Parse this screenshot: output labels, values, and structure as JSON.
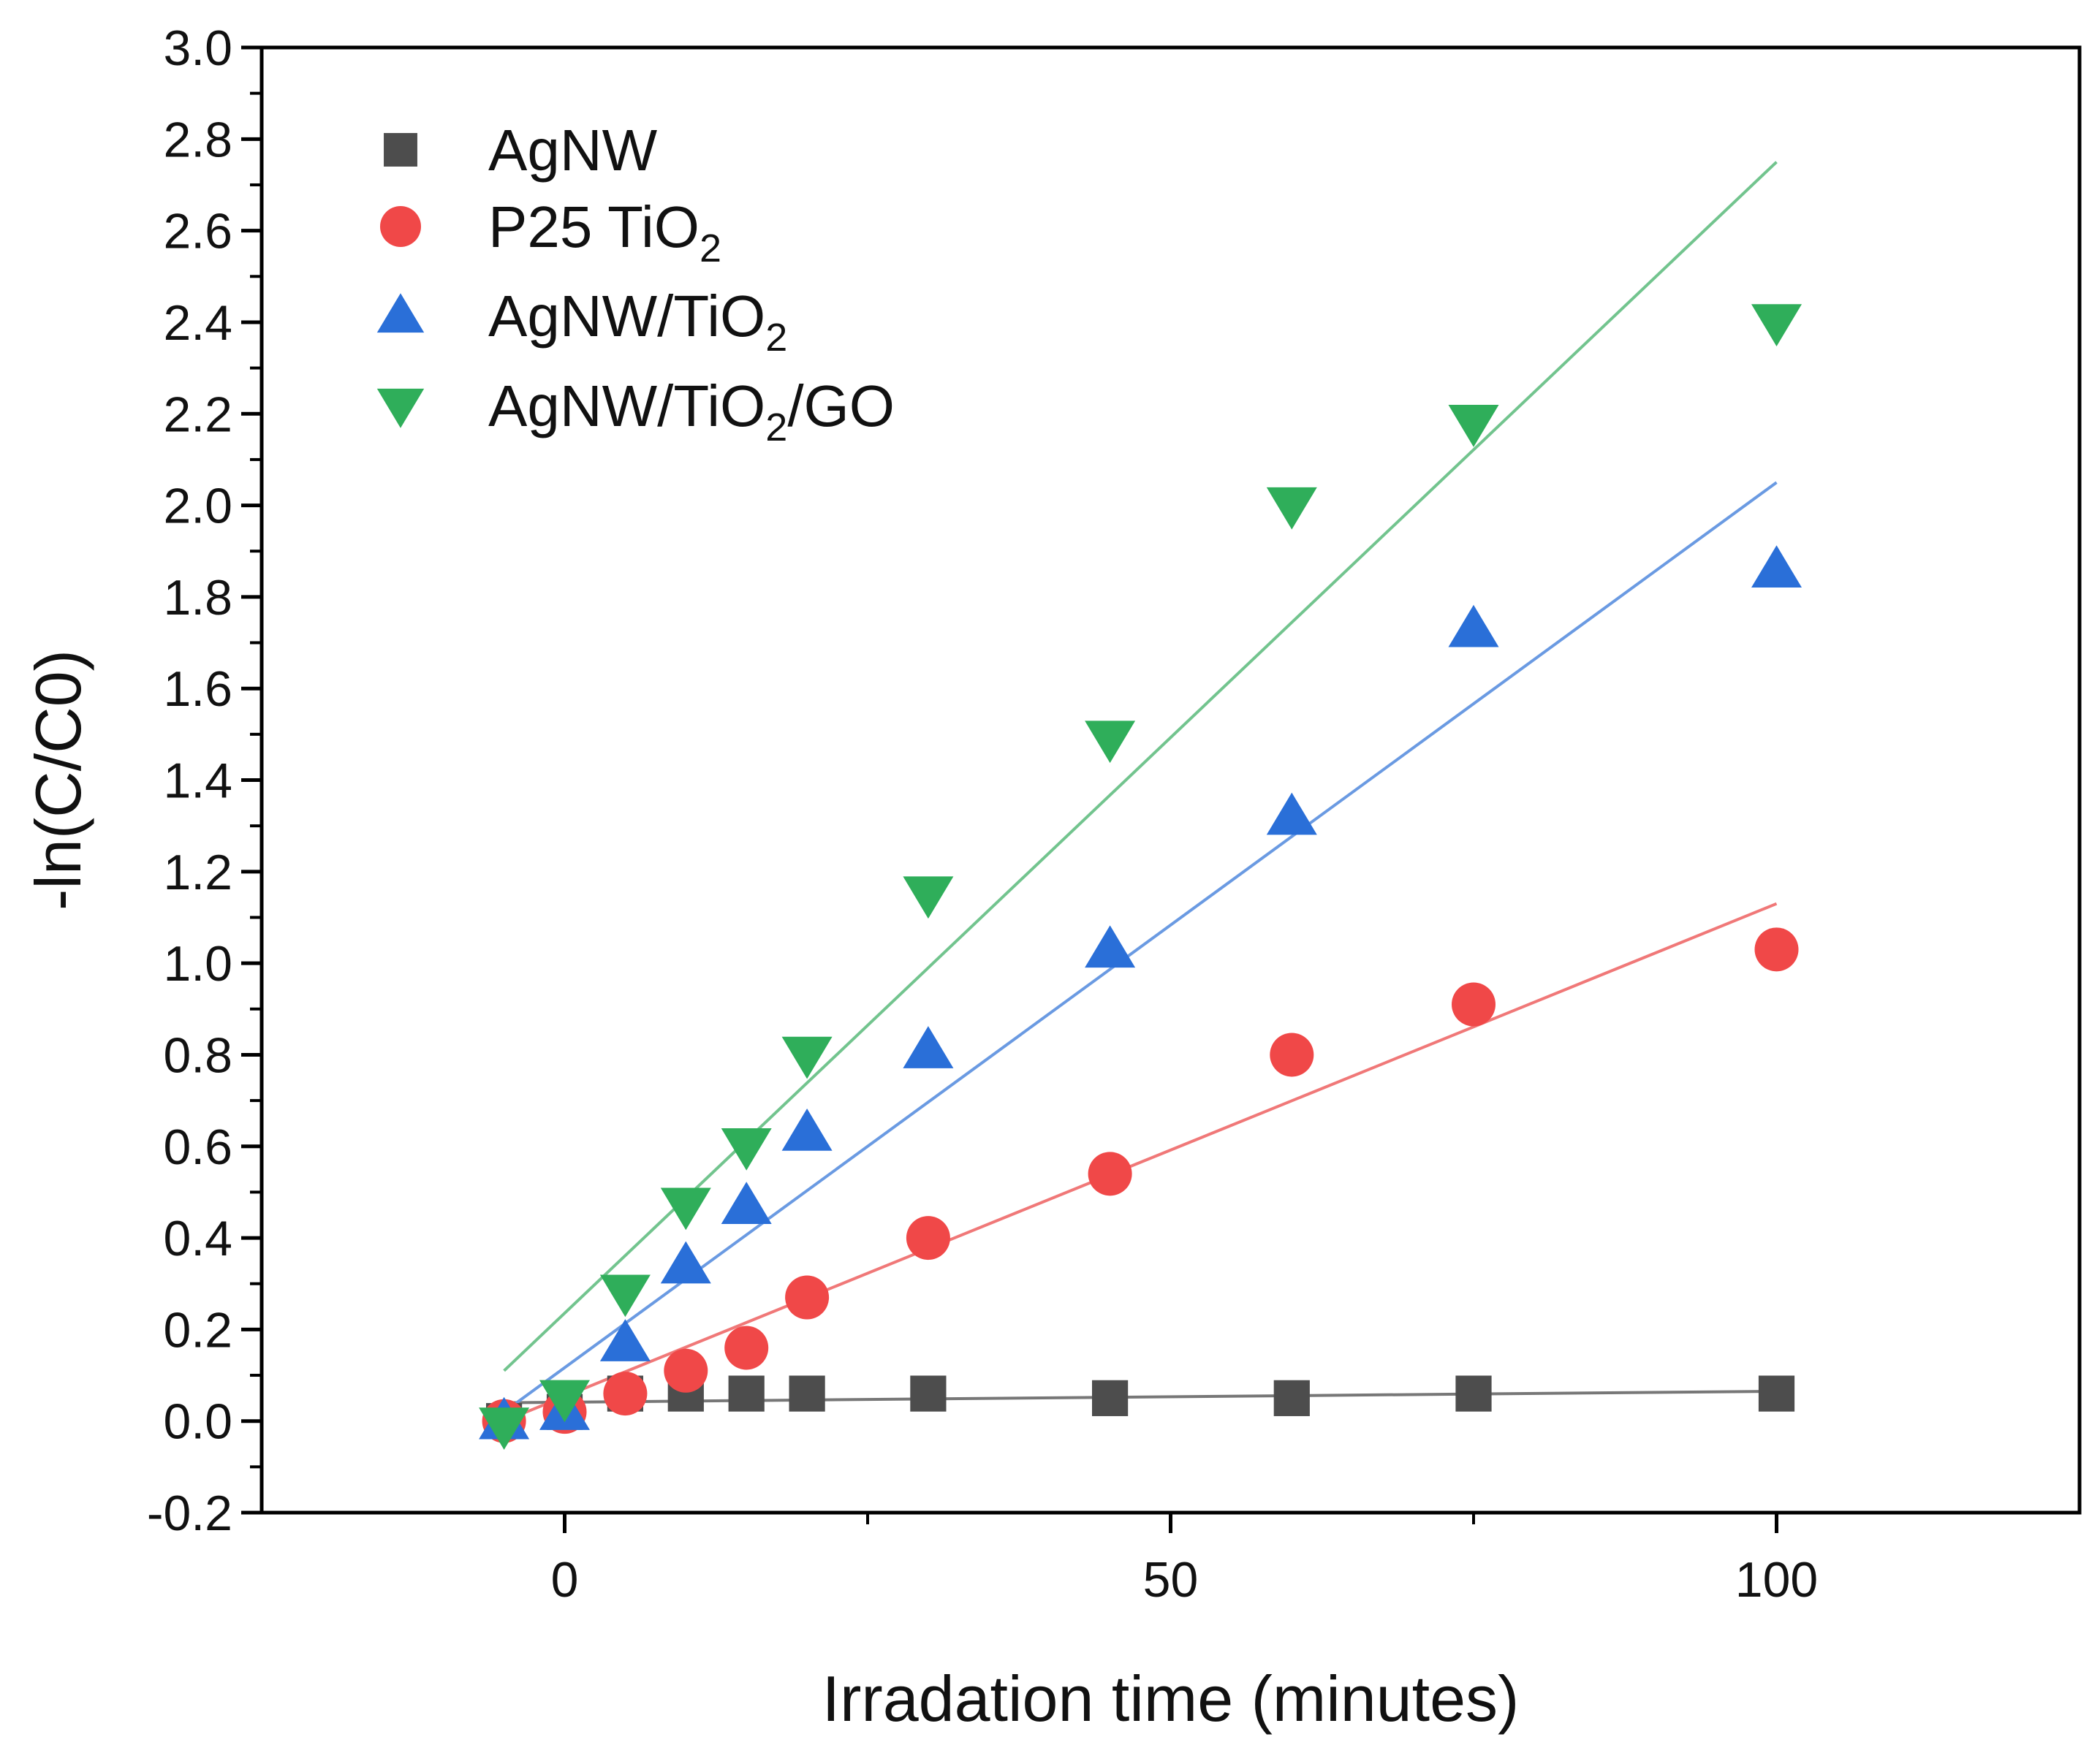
{
  "chart_data": {
    "type": "scatter",
    "title": "",
    "xlabel": "Irradation time (minutes)",
    "ylabel": "-ln(C/C0)",
    "xlim": [
      -25,
      125
    ],
    "ylim": [
      -0.2,
      3.0
    ],
    "x_ticks": [
      0,
      50,
      100
    ],
    "x_tick_labels": [
      "0",
      "50",
      "100"
    ],
    "y_ticks": [
      -0.2,
      0.0,
      0.2,
      0.4,
      0.6,
      0.8,
      1.0,
      1.2,
      1.4,
      1.6,
      1.8,
      2.0,
      2.2,
      2.4,
      2.6,
      2.8,
      3.0
    ],
    "y_tick_labels": [
      "-0.2",
      "0.0",
      "0.2",
      "0.4",
      "0.6",
      "0.8",
      "1.0",
      "1.2",
      "1.4",
      "1.6",
      "1.8",
      "2.0",
      "2.2",
      "2.4",
      "2.6",
      "2.8",
      "3.0"
    ],
    "grid": false,
    "legend_position": "top-left",
    "x": [
      -5,
      0,
      5,
      10,
      15,
      20,
      30,
      45,
      60,
      75,
      100
    ],
    "series": [
      {
        "name": "AgNW",
        "label_main": "AgNW",
        "label_sub": "",
        "label_tail": "",
        "marker": "square",
        "color": "#4d4d4d",
        "line_color": "#777777",
        "values": [
          0.0,
          0.02,
          0.06,
          0.06,
          0.06,
          0.06,
          0.06,
          0.05,
          0.05,
          0.06,
          0.06
        ],
        "fit": {
          "x": [
            -5,
            100
          ],
          "y": [
            0.04,
            0.065
          ]
        }
      },
      {
        "name": "P25 TiO2",
        "label_main": "P25 TiO",
        "label_sub": "2",
        "label_tail": "",
        "marker": "circle",
        "color": "#f04848",
        "line_color": "#f07878",
        "values": [
          0.0,
          0.02,
          0.06,
          0.11,
          0.16,
          0.27,
          0.4,
          0.54,
          0.8,
          0.91,
          1.03
        ],
        "fit": {
          "x": [
            -5,
            100
          ],
          "y": [
            0.0,
            1.13
          ]
        }
      },
      {
        "name": "AgNW/TiO2",
        "label_main": "AgNW/TiO",
        "label_sub": "2",
        "label_tail": "",
        "marker": "triangle-up",
        "color": "#2a6fd8",
        "line_color": "#6a9ae2",
        "values": [
          0.0,
          0.02,
          0.17,
          0.34,
          0.47,
          0.63,
          0.81,
          1.03,
          1.32,
          1.73,
          1.86
        ],
        "fit": {
          "x": [
            -5,
            100
          ],
          "y": [
            0.02,
            2.05
          ]
        }
      },
      {
        "name": "AgNW/TiO2/GO",
        "label_main": "AgNW/TiO",
        "label_sub": "2",
        "label_tail": "/GO",
        "marker": "triangle-down",
        "color": "#2fae5a",
        "line_color": "#72c48e",
        "values": [
          -0.01,
          0.05,
          0.28,
          0.47,
          0.6,
          0.8,
          1.15,
          1.49,
          2.0,
          2.18,
          2.4
        ],
        "fit": {
          "x": [
            -5,
            100
          ],
          "y": [
            0.11,
            2.75
          ]
        }
      }
    ]
  }
}
